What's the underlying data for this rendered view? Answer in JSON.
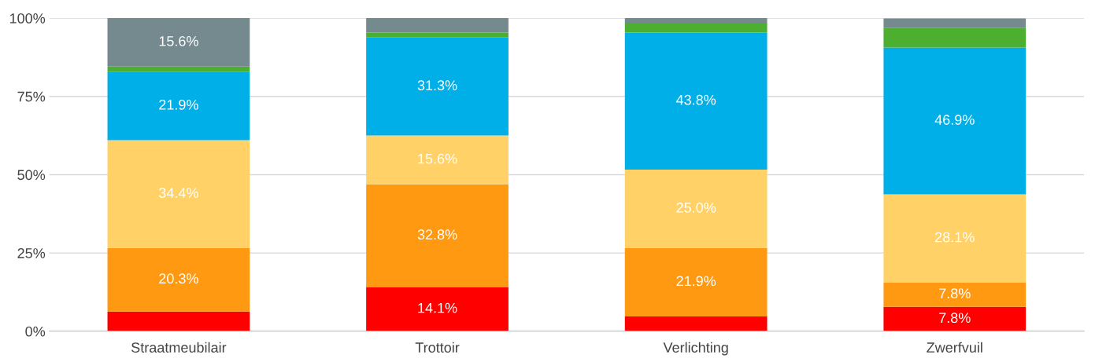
{
  "chart_data": {
    "type": "bar",
    "stacked": true,
    "categories": [
      "Straatmeubilair",
      "Trottoir",
      "Verlichting",
      "Zwerfvuil"
    ],
    "series": [
      {
        "color": "#ff0000",
        "values": [
          6.3,
          14.1,
          4.7,
          7.8
        ],
        "value_labels": [
          null,
          "14.1%",
          null,
          "7.8%"
        ]
      },
      {
        "color": "#ff9912",
        "values": [
          20.3,
          32.8,
          21.9,
          7.8
        ],
        "value_labels": [
          "20.3%",
          "32.8%",
          "21.9%",
          "7.8%"
        ]
      },
      {
        "color": "#ffd166",
        "values": [
          34.4,
          15.6,
          25.0,
          28.1
        ],
        "value_labels": [
          "34.4%",
          "15.6%",
          "25.0%",
          "28.1%"
        ]
      },
      {
        "color": "#00aee8",
        "values": [
          21.9,
          31.3,
          43.8,
          46.9
        ],
        "value_labels": [
          "21.9%",
          "31.3%",
          "43.8%",
          "46.9%"
        ]
      },
      {
        "color": "#4caf30",
        "values": [
          1.6,
          1.6,
          3.1,
          6.2
        ],
        "value_labels": [
          null,
          null,
          null,
          null
        ]
      },
      {
        "color": "#748a8f",
        "values": [
          15.6,
          4.7,
          1.6,
          3.1
        ],
        "value_labels": [
          "15.6%",
          null,
          null,
          null
        ]
      }
    ],
    "ylim": [
      0,
      100
    ],
    "yticks": [
      {
        "value": 0,
        "label": "0%"
      },
      {
        "value": 25,
        "label": "25%"
      },
      {
        "value": 50,
        "label": "50%"
      },
      {
        "value": 75,
        "label": "75%"
      },
      {
        "value": 100,
        "label": "100%"
      }
    ],
    "grid": "y",
    "legend": false
  }
}
